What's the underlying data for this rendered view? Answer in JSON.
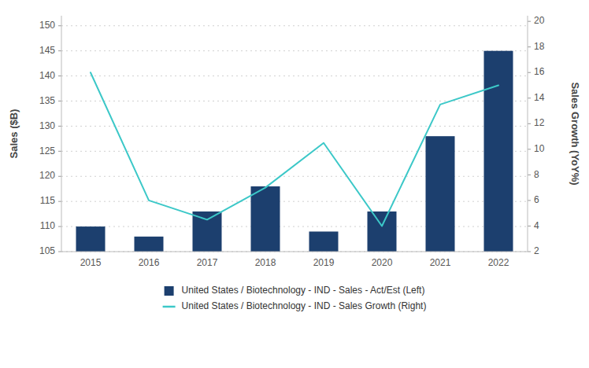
{
  "chart_data": {
    "type": "bar",
    "categories": [
      "2015",
      "2016",
      "2017",
      "2018",
      "2019",
      "2020",
      "2021",
      "2022"
    ],
    "series": [
      {
        "name": "United States / Biotechnology - IND - Sales - Act/Est (Left)",
        "type": "bar",
        "color": "#1c3f6e",
        "values": [
          110,
          108,
          113,
          118,
          109,
          113,
          128,
          145
        ]
      },
      {
        "name": "United States / Biotechnology - IND - Sales Growth (Right)",
        "type": "line",
        "color": "#3cc8c8",
        "axis": "y2",
        "values": [
          16.0,
          6.0,
          4.5,
          7.0,
          10.5,
          4.0,
          13.5,
          15.0
        ]
      }
    ],
    "ylabel": "Sales ($B)",
    "y2label": "Sales Growth (YoY%)",
    "ylim": [
      105,
      152
    ],
    "yticks": [
      105,
      110,
      115,
      120,
      125,
      130,
      135,
      140,
      145,
      150
    ],
    "y2lim": [
      2,
      20.44
    ],
    "y2ticks": [
      2,
      4,
      6,
      8,
      10,
      12,
      14,
      16,
      18,
      20
    ],
    "grid": true,
    "legend": "bottom"
  }
}
